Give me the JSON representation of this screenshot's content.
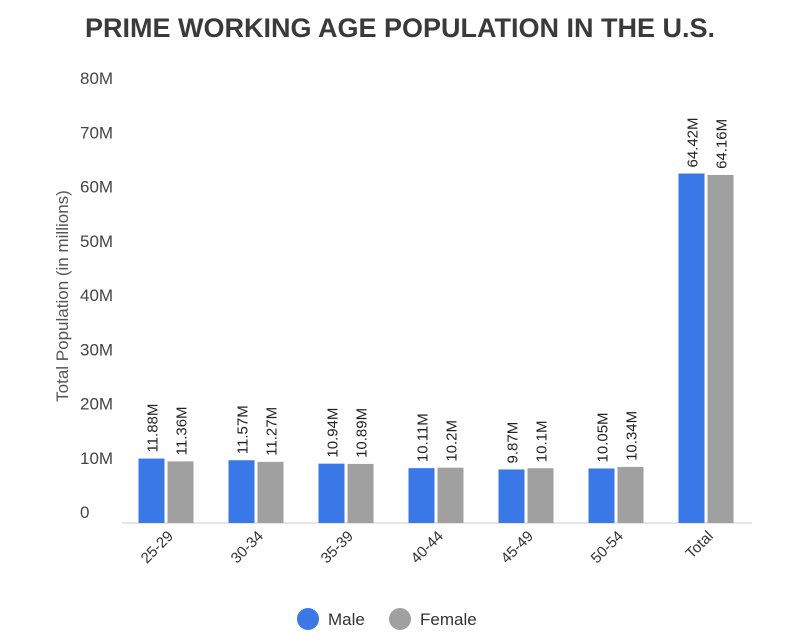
{
  "chart_data": {
    "type": "bar",
    "title": "PRIME WORKING AGE POPULATION IN THE U.S.",
    "xlabel": "",
    "ylabel": "Total Population (in millions)",
    "ylim": [
      0,
      80
    ],
    "yticks": [
      "0",
      "10M",
      "20M",
      "30M",
      "40M",
      "50M",
      "60M",
      "70M",
      "80M"
    ],
    "categories": [
      "25-29",
      "30-34",
      "35-39",
      "40-44",
      "45-49",
      "50-54",
      "Total"
    ],
    "series": [
      {
        "name": "Male",
        "color": "#3b78e7",
        "values": [
          11.88,
          11.57,
          10.94,
          10.11,
          9.87,
          10.05,
          64.42
        ],
        "labels": [
          "11.88M",
          "11.57M",
          "10.94M",
          "10.11M",
          "9.87M",
          "10.05M",
          "64.42M"
        ]
      },
      {
        "name": "Female",
        "color": "#a0a0a0",
        "values": [
          11.36,
          11.27,
          10.89,
          10.2,
          10.1,
          10.34,
          64.16
        ],
        "labels": [
          "11.36M",
          "11.27M",
          "10.89M",
          "10.2M",
          "10.1M",
          "10.34M",
          "64.16M"
        ]
      }
    ],
    "grid": false,
    "legend": "bottom"
  }
}
